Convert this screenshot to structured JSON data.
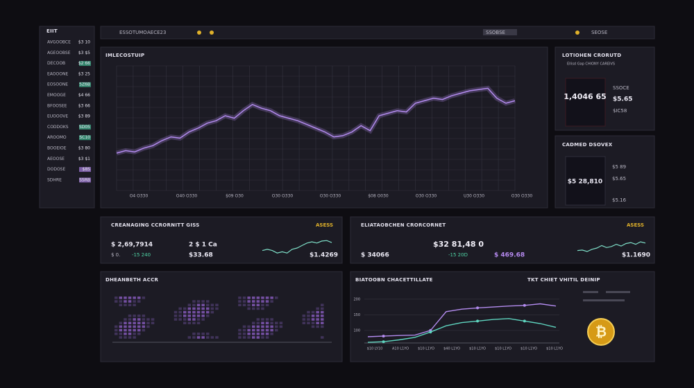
{
  "sidebar": {
    "title": "EIIT",
    "rows": [
      {
        "label": "AVGOOBCE",
        "value": "$3 10"
      },
      {
        "label": "AGEOOBSE",
        "value": "$3 $5"
      },
      {
        "label": "DECOOB",
        "value": "$2 66",
        "color": "#3fb58e"
      },
      {
        "label": "EAOOONE",
        "value": "$3 25"
      },
      {
        "label": "EOSOONE",
        "value": "5Z6B",
        "color": "#3fb58e"
      },
      {
        "label": "EMOOGE",
        "value": "$4 66"
      },
      {
        "label": "BFOOSEE",
        "value": "$3 66"
      },
      {
        "label": "EUOOOVE",
        "value": "$3 89"
      },
      {
        "label": "CODDOKS",
        "value": "SD05",
        "color": "#3fb58e"
      },
      {
        "label": "AROOMO",
        "value": "SC10",
        "color": "#3fb58e"
      },
      {
        "label": "BOOEIOE",
        "value": "$3 80"
      },
      {
        "label": "AEOOSE",
        "value": "$3 $1"
      },
      {
        "label": "DODOSE",
        "value": "$8S",
        "color": "#a77de0"
      },
      {
        "label": "SDHRE",
        "value": "SSRB",
        "color": "#a77de0"
      }
    ]
  },
  "topbar": {
    "search": "ESSOTUMO",
    "code": "AECE23",
    "button": "SSOBSE",
    "account": "SEOSE"
  },
  "main_chart": {
    "title": "IMLECOSTUIP",
    "color": "#b48cf0",
    "values": [
      30,
      32,
      31,
      34,
      36,
      40,
      43,
      42,
      47,
      50,
      54,
      56,
      60,
      58,
      64,
      69,
      66,
      64,
      60,
      58,
      56,
      53,
      50,
      47,
      43,
      44,
      47,
      52,
      48,
      60,
      62,
      64,
      63,
      70,
      72,
      74,
      73,
      76,
      78,
      80,
      81,
      82,
      74,
      70,
      72
    ],
    "ylim": [
      0,
      100
    ],
    "x_labels": [
      "O4 O330",
      "O40 O330",
      "$09 O30",
      "O30 O330",
      "O30 O330",
      "$08 O030",
      "O30 O330",
      "U30 O330",
      "O30 O330"
    ]
  },
  "right_top": {
    "title": "LOTIOHEN CRORUTD",
    "subtitle": "Ellisd Gap CHIONY CAREIVS",
    "value": "1,4046 65",
    "side": [
      "SSOCE",
      "$5.65",
      "$IC58"
    ]
  },
  "right_bottom": {
    "title": "CADMED DSOVEX",
    "value": "$5 28,810",
    "side": [
      "$5 89",
      "$5.65",
      "$5.16"
    ]
  },
  "card_left": {
    "title": "CREANAGING CCRORNITT GISS",
    "badge": "ASESS",
    "value": "$ 2,69,7914",
    "change": "$ 0.",
    "change2": "-15 240",
    "value2": "2 $ 1 Ca",
    "value3": "$33.68",
    "spark_value": "$1.4269",
    "spark": [
      4,
      4.5,
      4,
      3,
      3.5,
      3,
      4.5,
      5,
      6,
      7,
      7.5,
      7,
      7.8,
      8,
      7.2
    ],
    "spark_lim": [
      0,
      10
    ]
  },
  "card_right": {
    "title": "ELIATAOBCHEN CRORCORNET",
    "badge": "ASESS",
    "value": "$32 81,48 0",
    "change": "$ 34066",
    "change2": "-15 20D",
    "value3": "$ 469.68",
    "spark_value": "$1.1690",
    "spark": [
      4,
      4.2,
      3.6,
      4.5,
      5,
      6,
      5.2,
      5.6,
      6.5,
      5.8,
      6.8,
      7.2,
      6.5,
      7.5,
      7
    ],
    "spark_lim": [
      0,
      10
    ]
  },
  "heatmap": {
    "title": "DHEANBETH ACCR"
  },
  "bottom_chart": {
    "title": "BIATOOBN CHACETTILLATE",
    "side_title": "TKT CHIET VHITIL DEINIP",
    "coin": "₿",
    "ylim": [
      60,
      215
    ],
    "yticks": [
      100,
      150,
      200
    ],
    "x_labels": [
      "$10 LY10",
      "A10 L1YO",
      "$10 L1YO",
      "$40 L1YO",
      "$10 L1YO",
      "$10 L1YO",
      "$10 L1YO",
      "$10 L1YO"
    ],
    "series": [
      {
        "color": "#b48cf0",
        "values": [
          80,
          82,
          84,
          85,
          100,
          160,
          168,
          172,
          175,
          178,
          180,
          185,
          178
        ]
      },
      {
        "color": "#5fd6c0",
        "values": [
          62,
          64,
          70,
          78,
          95,
          115,
          125,
          130,
          135,
          138,
          130,
          122,
          110
        ]
      }
    ]
  }
}
